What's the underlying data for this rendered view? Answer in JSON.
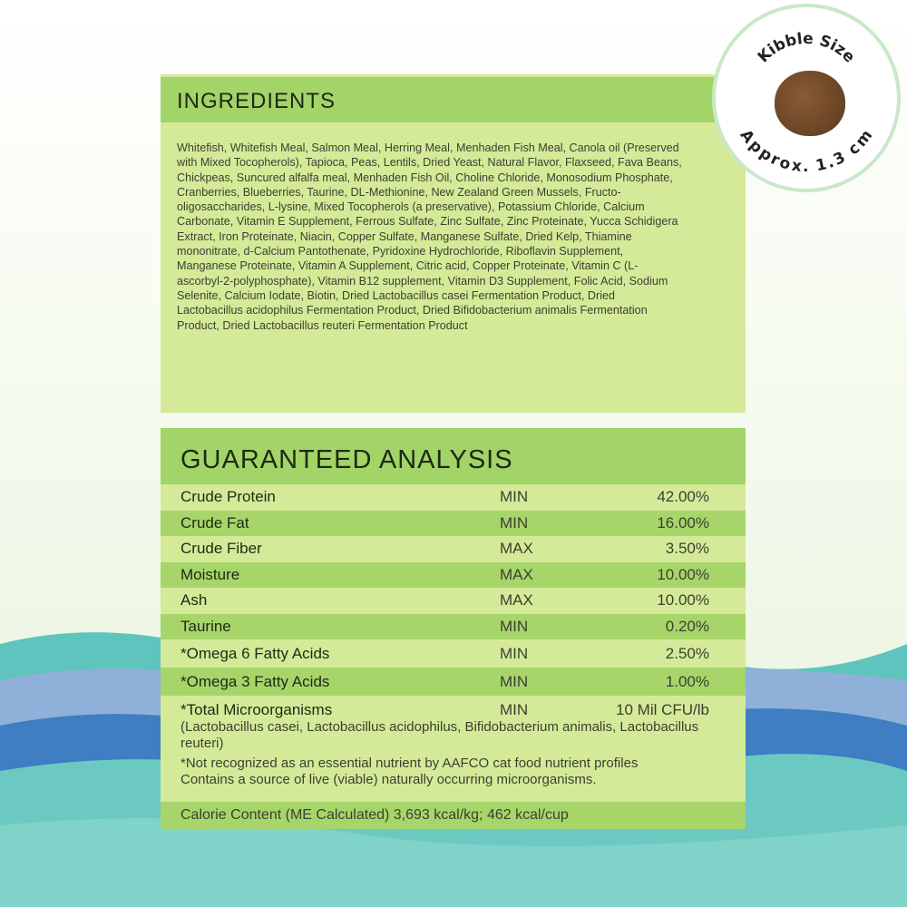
{
  "ingredients": {
    "title": "INGREDIENTS",
    "text": "Whitefish, Whitefish Meal, Salmon Meal, Herring Meal, Menhaden Fish Meal, Canola oil (Preserved with Mixed Tocopherols), Tapioca, Peas, Lentils, Dried Yeast, Natural Flavor, Flaxseed, Fava Beans, Chickpeas, Suncured alfalfa meal, Menhaden Fish Oil, Choline Chloride, Monosodium Phosphate, Cranberries, Blueberries, Taurine, DL-Methionine, New Zealand Green Mussels, Fructo-oligosaccharides, L-lysine, Mixed Tocopherols (a preservative), Potassium Chloride, Calcium Carbonate, Vitamin E Supplement, Ferrous Sulfate, Zinc Sulfate, Zinc Proteinate, Yucca Schidigera Extract, Iron Proteinate, Niacin, Copper Sulfate, Manganese Sulfate, Dried Kelp, Thiamine mononitrate, d-Calcium Pantothenate, Pyridoxine Hydrochloride, Riboflavin Supplement, Manganese Proteinate, Vitamin A Supplement, Citric acid, Copper Proteinate, Vitamin C (L-ascorbyl-2-polyphosphate), Vitamin B12 supplement, Vitamin D3 Supplement, Folic Acid, Sodium Selenite, Calcium Iodate, Biotin, Dried Lactobacillus casei Fermentation Product, Dried Lactobacillus acidophilus Fermentation Product, Dried Bifidobacterium animalis Fermentation Product, Dried Lactobacillus reuteri Fermentation Product"
  },
  "analysis": {
    "title": "GUARANTEED ANALYSIS",
    "rows": [
      {
        "name": "Crude Protein",
        "type": "MIN",
        "value": "42.00%"
      },
      {
        "name": "Crude Fat",
        "type": "MIN",
        "value": "16.00%"
      },
      {
        "name": "Crude Fiber",
        "type": "MAX",
        "value": "3.50%"
      },
      {
        "name": "Moisture",
        "type": "MAX",
        "value": "10.00%"
      },
      {
        "name": "Ash",
        "type": "MAX",
        "value": "10.00%"
      },
      {
        "name": "Taurine",
        "type": "MIN",
        "value": "0.20%"
      },
      {
        "name": "*Omega 6 Fatty Acids",
        "type": "MIN",
        "value": "2.50%"
      },
      {
        "name": "*Omega 3 Fatty Acids",
        "type": "MIN",
        "value": "1.00%"
      }
    ],
    "micro": {
      "name": "*Total Microorganisms",
      "type": "MIN",
      "value": "10 Mil CFU/lb",
      "strains": "(Lactobacillus casei, Lactobacillus acidophilus, Bifidobacterium animalis, Lactobacillus reuteri)",
      "note1": "*Not recognized as an essential nutrient by AAFCO cat food nutrient profiles",
      "note2": "Contains a source of live (viable) naturally occurring microorganisms."
    },
    "calorie": "Calorie Content (ME Calculated) 3,693 kcal/kg; 462 kcal/cup"
  },
  "badge": {
    "top": "Kibble Size",
    "bottom": "Approx. 1.3 cm"
  },
  "colors": {
    "header": "#a3d468",
    "panel": "#d4ea98",
    "dark_row": "#a7d56a"
  }
}
